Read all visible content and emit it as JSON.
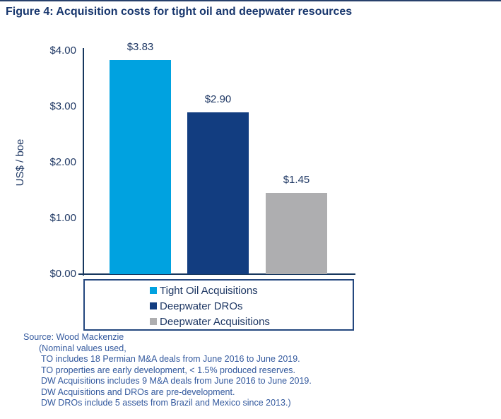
{
  "page": {
    "title": "Figure 4: Acquisition costs for tight oil and deepwater resources"
  },
  "chart_data": {
    "type": "bar",
    "title": "Figure 4: Acquisition costs for tight oil and deepwater resources",
    "xlabel": "",
    "ylabel": "US$ / boe",
    "ylim": [
      0,
      4
    ],
    "grid": false,
    "categories": [
      "Tight Oil Acquisitions",
      "Deepwater DROs",
      "Deepwater Acquisitions"
    ],
    "values": [
      3.83,
      2.9,
      1.45
    ],
    "value_labels": [
      "$3.83",
      "$2.90",
      "$1.45"
    ],
    "bar_colors": [
      "#00a2e0",
      "#123d80",
      "#aeaeb0"
    ],
    "yticks": [
      {
        "label": "$4.00",
        "value": 4
      },
      {
        "label": "$3.00",
        "value": 3
      },
      {
        "label": "$2.00",
        "value": 2
      },
      {
        "label": "$1.00",
        "value": 1
      },
      {
        "label": "$0.00",
        "value": 0
      }
    ],
    "legend": {
      "position": "bottom",
      "entries": [
        {
          "label": "Tight Oil Acquisitions",
          "color": "#00a2e0"
        },
        {
          "label": "Deepwater DROs",
          "color": "#123d80"
        },
        {
          "label": "Deepwater Acquisitions",
          "color": "#aeaeb0"
        }
      ]
    }
  },
  "footer": {
    "lines": [
      "Source: Wood Mackenzie",
      "(Nominal values used,",
      "TO includes 18 Permian M&A deals from June 2016 to June 2019.",
      "TO properties are early development, < 1.5% produced reserves.",
      "DW Acquisitions includes 9 M&A deals from June 2016 to June 2019.",
      "DW Acquisitions and DROs are pre-development.",
      "DW DROs include 5 assets from Brazil and Mexico since 2013.)"
    ]
  },
  "colors": {
    "title_text": "#17366d",
    "axis_line": "#17375e",
    "axis_text": "#1f3864",
    "legend_border": "#24477e",
    "footer_text": "#33599e"
  }
}
